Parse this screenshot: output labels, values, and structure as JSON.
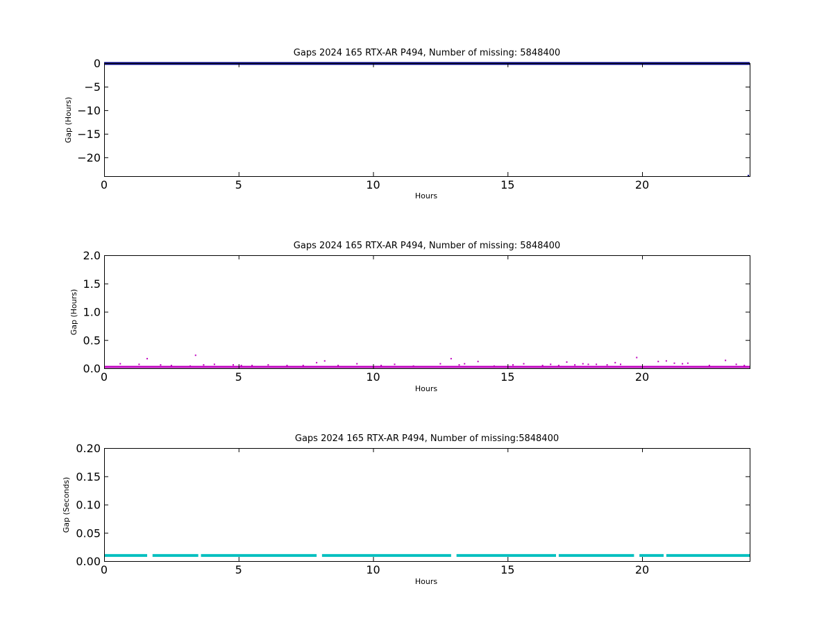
{
  "chart_data": [
    {
      "type": "scatter",
      "title": "Gaps 2024 165 RTX-AR  P494, Number of missing: 5848400",
      "xlabel": "Hours",
      "ylabel": "Gap (Hours)",
      "xlim": [
        0,
        24
      ],
      "ylim": [
        -24,
        0
      ],
      "xticks": [
        0,
        5,
        10,
        15,
        20
      ],
      "yticks": [
        0,
        -5,
        -10,
        -15,
        -20
      ],
      "ytick_labels": [
        "0",
        "−5",
        "−10",
        "−15",
        "−20"
      ],
      "grid": false,
      "color": "#000080",
      "series": [
        {
          "x": [
            0.05,
            0.7,
            1.3,
            1.6,
            1.8,
            3.5,
            3.6,
            4.2,
            5.1,
            6.0,
            7.2,
            8.0,
            8.2,
            9.4,
            10.7,
            12.9,
            13.2,
            13.9,
            15.1,
            15.9,
            17.1,
            17.8,
            18.2,
            18.9,
            19.7,
            19.8,
            20.8,
            21.0,
            21.4,
            21.7,
            22.5,
            23.1,
            23.5,
            23.95
          ],
          "y": [
            0,
            0,
            0,
            0,
            0,
            -0.02,
            -0.02,
            0,
            0,
            0,
            0,
            0,
            -0.01,
            0,
            0,
            -0.02,
            0,
            -0.01,
            0,
            0,
            -0.01,
            0,
            0,
            0,
            -0.02,
            -0.02,
            0,
            0,
            0,
            0,
            0,
            -0.01,
            0,
            -24
          ]
        }
      ]
    },
    {
      "type": "scatter",
      "title": "Gaps 2024 165 RTX-AR  P494, Number of missing: 5848400",
      "xlabel": "Hours",
      "ylabel": "Gap (Hours)",
      "xlim": [
        0,
        24
      ],
      "ylim": [
        0,
        2
      ],
      "xticks": [
        0,
        5,
        10,
        15,
        20
      ],
      "yticks": [
        0,
        0.5,
        1,
        1.5,
        2
      ],
      "ytick_labels": [
        "0.0",
        "0.5",
        "1.0",
        "1.5",
        "2.0"
      ],
      "grid": false,
      "color": "#bf00bf",
      "series": [
        {
          "x": [
            0.6,
            1.3,
            1.6,
            2.1,
            2.5,
            3.2,
            3.4,
            3.7,
            4.1,
            4.8,
            5.1,
            5.5,
            6.1,
            6.8,
            7.4,
            7.9,
            8.2,
            8.7,
            9.4,
            10.3,
            10.8,
            11.5,
            12.5,
            12.9,
            13.2,
            13.4,
            13.9,
            14.5,
            15.2,
            15.6,
            16.3,
            16.6,
            16.9,
            17.2,
            17.5,
            17.8,
            18.0,
            18.3,
            18.7,
            19.0,
            19.2,
            19.8,
            20.6,
            20.9,
            21.2,
            21.5,
            21.7,
            22.5,
            23.1,
            23.5,
            23.8
          ],
          "y": [
            0.08,
            0.07,
            0.17,
            0.06,
            0.05,
            0.04,
            0.23,
            0.06,
            0.07,
            0.06,
            0.05,
            0.05,
            0.06,
            0.05,
            0.05,
            0.1,
            0.13,
            0.05,
            0.08,
            0.05,
            0.07,
            0.04,
            0.08,
            0.17,
            0.06,
            0.08,
            0.12,
            0.04,
            0.06,
            0.08,
            0.05,
            0.07,
            0.05,
            0.11,
            0.06,
            0.08,
            0.07,
            0.07,
            0.06,
            0.1,
            0.07,
            0.19,
            0.12,
            0.13,
            0.09,
            0.08,
            0.09,
            0.05,
            0.14,
            0.07,
            0.05
          ]
        }
      ]
    },
    {
      "type": "scatter",
      "title": "Gaps 2024 165 RTX-AR  P494, Number of missing:5848400",
      "xlabel": "Hours",
      "ylabel": "Gap (Seconds)",
      "xlim": [
        0,
        24
      ],
      "ylim": [
        0,
        0.2
      ],
      "xticks": [
        0,
        5,
        10,
        15,
        20
      ],
      "yticks": [
        0,
        0.05,
        0.1,
        0.15,
        0.2
      ],
      "ytick_labels": [
        "0.00",
        "0.05",
        "0.10",
        "0.15",
        "0.20"
      ],
      "grid": false,
      "color": "#00bfbf",
      "series": [
        {
          "y": 0.01,
          "x_segments": [
            [
              0,
              1.6
            ],
            [
              1.8,
              3.5
            ],
            [
              3.6,
              7.9
            ],
            [
              8.1,
              12.9
            ],
            [
              13.1,
              16.8
            ],
            [
              16.9,
              19.7
            ],
            [
              19.9,
              20.8
            ],
            [
              20.9,
              24
            ]
          ]
        }
      ]
    }
  ]
}
